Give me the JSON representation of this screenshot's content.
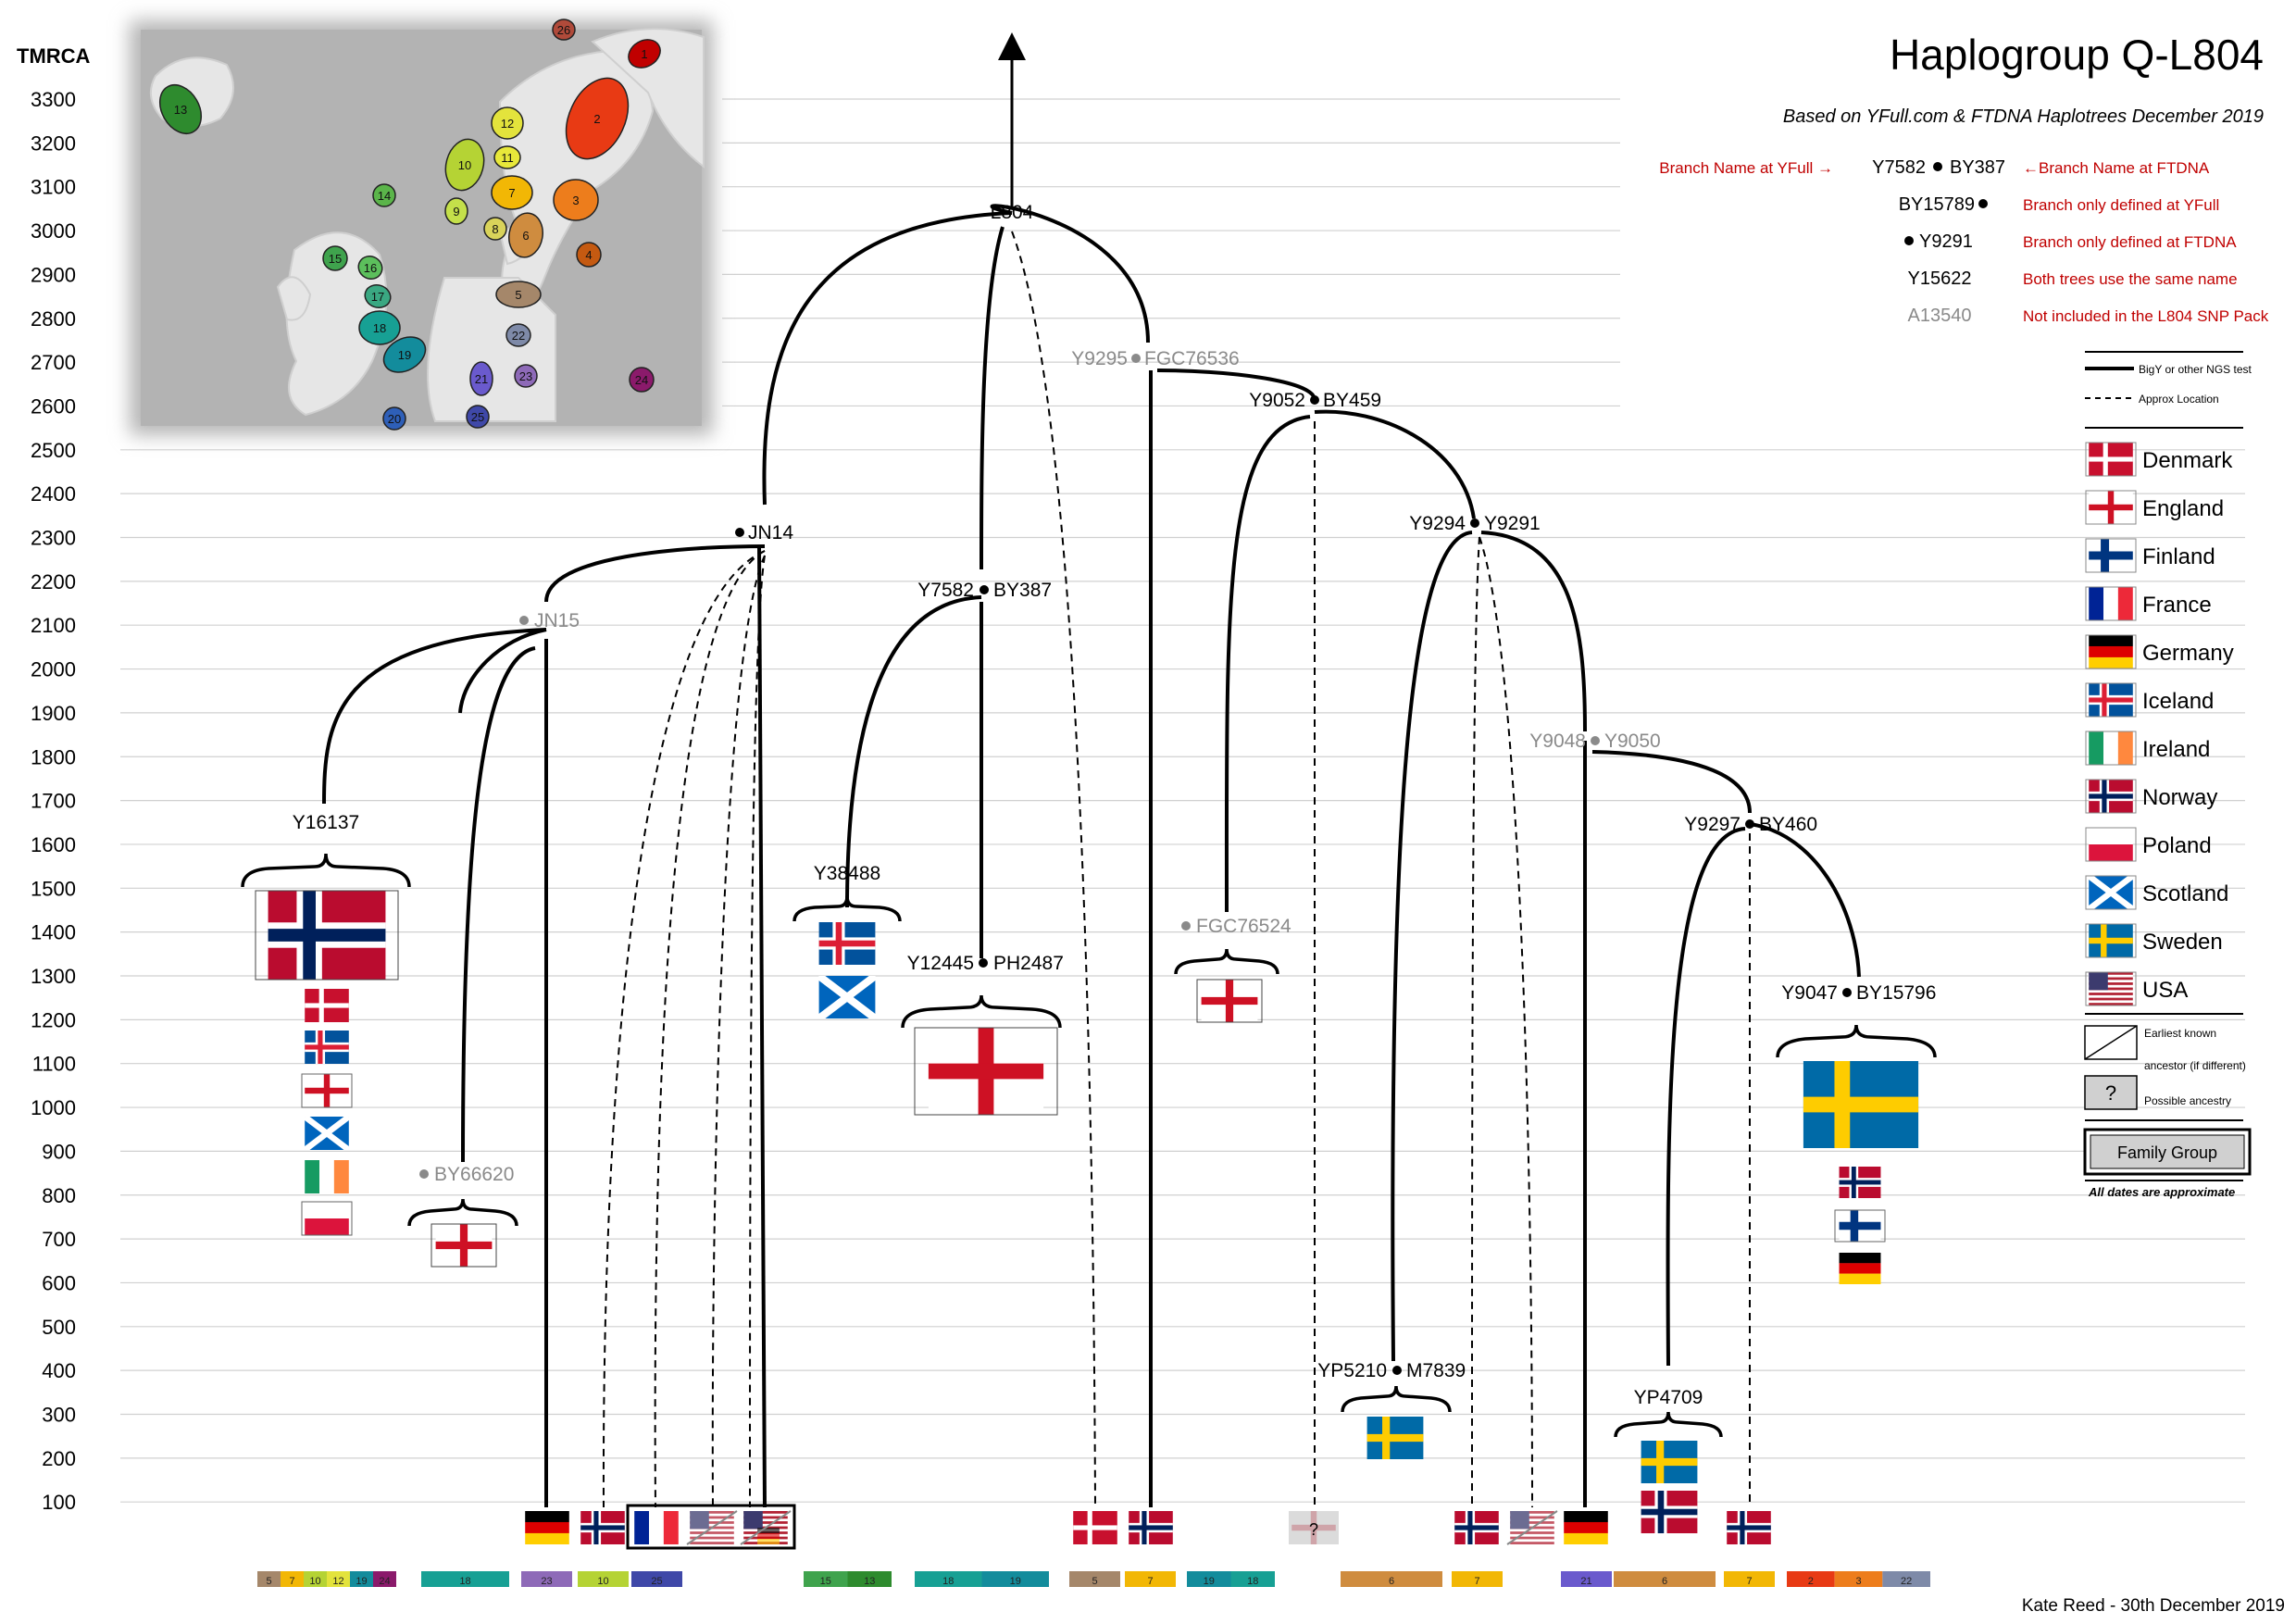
{
  "title": "Haplogroup Q-L804",
  "subtitle": "Based on YFull.com & FTDNA Haplotrees December 2019",
  "credit": "Kate Reed - 30th December 2019",
  "axis": {
    "label": "TMRCA",
    "ticks": [
      3300,
      3200,
      3100,
      3000,
      2900,
      2800,
      2700,
      2600,
      2500,
      2400,
      2300,
      2200,
      2100,
      2000,
      1900,
      1800,
      1700,
      1600,
      1500,
      1400,
      1300,
      1200,
      1100,
      1000,
      900,
      800,
      700,
      600,
      500,
      400,
      300,
      200,
      100
    ]
  },
  "key": {
    "yfull_arrow": "Branch Name at YFull →",
    "both_example_left": "Y7582",
    "both_example_right": "BY387",
    "ftdna_arrow": "←Branch Name at FTDNA",
    "yfull_only": "BY15789",
    "yfull_only_desc": "Branch only defined at YFull",
    "ftdna_only": "Y9291",
    "ftdna_only_desc": "Branch only defined at FTDNA",
    "same_name": "Y15622",
    "same_name_desc": "Both trees use the same name",
    "not_included": "A13540",
    "not_included_desc": "Not included in the L804 SNP Pack",
    "solid_desc": "BigY or other NGS test",
    "dashed_desc": "Approx Location",
    "earliest_line1": "Earliest known",
    "earliest_line2": "ancestor (if different)",
    "possible_mark": "?",
    "possible_desc": "Possible ancestry",
    "family_group": "Family Group",
    "dates_note": "All dates are approximate"
  },
  "legend_countries": [
    "Denmark",
    "England",
    "Finland",
    "France",
    "Germany",
    "Iceland",
    "Ireland",
    "Norway",
    "Poland",
    "Scotland",
    "Sweden",
    "USA"
  ],
  "nodes": {
    "l804": "L804",
    "y9295_l": "Y9295",
    "y9295_r": "FGC76536",
    "y9052_l": "Y9052",
    "y9052_r": "BY459",
    "jn14": "JN14",
    "jn15": "JN15",
    "y7582_l": "Y7582",
    "y7582_r": "BY387",
    "y9294_l": "Y9294",
    "y9294_r": "Y9291",
    "y9048_l": "Y9048",
    "y9048_r": "Y9050",
    "y16137": "Y16137",
    "y9297_l": "Y9297",
    "y9297_r": "BY460",
    "y38488": "Y38488",
    "fgc76524": "FGC76524",
    "y12445_l": "Y12445",
    "y12445_r": "PH2487",
    "y9047_l": "Y9047",
    "y9047_r": "BY15796",
    "by66620": "BY66620",
    "yp5210_l": "YP5210",
    "yp5210_r": "M7839",
    "yp4709": "YP4709",
    "possible_mark": "?"
  },
  "map_regions": [
    "1",
    "2",
    "3",
    "4",
    "5",
    "6",
    "7",
    "8",
    "9",
    "10",
    "11",
    "12",
    "13",
    "14",
    "15",
    "16",
    "17",
    "18",
    "19",
    "20",
    "21",
    "22",
    "23",
    "24",
    "25",
    "26"
  ],
  "bottom_groups": [
    [
      "5",
      "7",
      "10",
      "12",
      "19",
      "24"
    ],
    [
      "18"
    ],
    [
      "23"
    ],
    [
      "10"
    ],
    [
      "25"
    ],
    [
      "15",
      "13"
    ],
    [
      "18",
      "19"
    ],
    [
      "5"
    ],
    [
      "7"
    ],
    [
      "19",
      "18"
    ],
    [
      "6"
    ],
    [
      "7"
    ],
    [
      "21"
    ],
    [
      "6"
    ],
    [
      "7"
    ],
    [
      "2",
      "3",
      "22"
    ]
  ],
  "colors": {
    "region_1": "#c00000",
    "region_2": "#e83a14",
    "region_3": "#ed7d1c",
    "region_4": "#c55a11",
    "region_5": "#a5876a",
    "region_6": "#cf8c3f",
    "region_7": "#f2b705",
    "region_8": "#d9d35a",
    "region_9": "#c4e04a",
    "region_10": "#b5d334",
    "region_11": "#e8e83a",
    "region_12": "#e3e33c",
    "region_13": "#2e8b2e",
    "region_14": "#5bb54a",
    "region_15": "#3fa34d",
    "region_16": "#5cbf5c",
    "region_17": "#3aa882",
    "region_18": "#17a094",
    "region_19": "#138c9c",
    "region_20": "#2e5fb8",
    "region_21": "#6a5acd",
    "region_22": "#7e8aa8",
    "region_23": "#8e6ab8",
    "region_24": "#8b1a6b",
    "region_25": "#3f48a8",
    "region_26": "#b04a3a"
  }
}
